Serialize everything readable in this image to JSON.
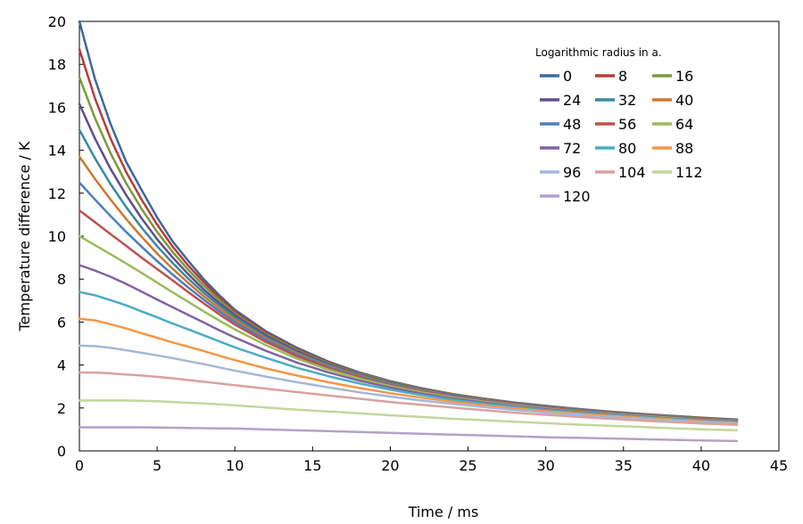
{
  "chart_data": {
    "type": "line",
    "title": "",
    "xlabel": "Time / ms",
    "ylabel": "Temperature difference / K",
    "xlim": [
      0,
      45
    ],
    "ylim": [
      0,
      20
    ],
    "xticks": [
      0,
      5,
      10,
      15,
      20,
      25,
      30,
      35,
      40,
      45
    ],
    "yticks": [
      0,
      2,
      4,
      6,
      8,
      10,
      12,
      14,
      16,
      18,
      20
    ],
    "grid": false,
    "legend_title": "Logarithmic radius in a.",
    "legend_position": "top-right",
    "x": [
      0,
      1,
      2,
      3,
      4,
      5,
      6,
      7,
      8,
      9,
      10,
      12,
      14,
      16,
      18,
      20,
      22,
      24,
      26,
      28,
      30,
      32,
      34,
      36,
      38,
      40,
      42.3
    ],
    "series": [
      {
        "name": "0",
        "color": "#3F679E",
        "values": [
          20.0,
          17.32,
          15.24,
          13.47,
          12.15,
          10.87,
          9.75,
          8.85,
          7.99,
          7.25,
          6.57,
          5.57,
          4.8,
          4.16,
          3.66,
          3.25,
          2.92,
          2.65,
          2.44,
          2.25,
          2.1,
          1.96,
          1.84,
          1.73,
          1.64,
          1.55,
          1.46
        ]
      },
      {
        "name": "8",
        "color": "#B43D3A",
        "values": [
          18.7,
          16.42,
          14.55,
          12.99,
          11.7,
          10.54,
          9.51,
          8.63,
          7.85,
          7.14,
          6.49,
          5.5,
          4.74,
          4.12,
          3.63,
          3.23,
          2.91,
          2.64,
          2.43,
          2.24,
          2.09,
          1.95,
          1.83,
          1.72,
          1.63,
          1.54,
          1.45
        ]
      },
      {
        "name": "16",
        "color": "#7B9A3B",
        "values": [
          17.4,
          15.5,
          13.87,
          12.47,
          11.27,
          10.2,
          9.26,
          8.43,
          7.69,
          7.03,
          6.4,
          5.44,
          4.69,
          4.08,
          3.6,
          3.21,
          2.89,
          2.63,
          2.42,
          2.23,
          2.08,
          1.94,
          1.82,
          1.71,
          1.62,
          1.53,
          1.44
        ]
      },
      {
        "name": "24",
        "color": "#634C8E",
        "values": [
          16.15,
          14.55,
          13.14,
          11.92,
          10.83,
          9.86,
          9.01,
          8.23,
          7.52,
          6.89,
          6.32,
          5.38,
          4.64,
          4.04,
          3.56,
          3.18,
          2.87,
          2.61,
          2.4,
          2.22,
          2.06,
          1.93,
          1.81,
          1.7,
          1.61,
          1.52,
          1.43
        ]
      },
      {
        "name": "32",
        "color": "#37899D",
        "values": [
          14.95,
          13.63,
          12.43,
          11.36,
          10.4,
          9.53,
          8.75,
          8.02,
          7.36,
          6.77,
          6.22,
          5.3,
          4.58,
          4.0,
          3.53,
          3.15,
          2.85,
          2.59,
          2.38,
          2.2,
          2.05,
          1.92,
          1.8,
          1.69,
          1.6,
          1.51,
          1.42
        ]
      },
      {
        "name": "40",
        "color": "#CD7730",
        "values": [
          13.7,
          12.67,
          11.71,
          10.8,
          9.97,
          9.19,
          8.48,
          7.82,
          7.2,
          6.63,
          6.11,
          5.23,
          4.53,
          3.95,
          3.5,
          3.12,
          2.82,
          2.57,
          2.36,
          2.19,
          2.03,
          1.9,
          1.78,
          1.68,
          1.58,
          1.5,
          1.41
        ]
      },
      {
        "name": "48",
        "color": "#4A7EBF",
        "values": [
          12.5,
          11.71,
          10.94,
          10.2,
          9.51,
          8.84,
          8.21,
          7.61,
          7.04,
          6.5,
          6.0,
          5.16,
          4.47,
          3.91,
          3.46,
          3.09,
          2.79,
          2.55,
          2.34,
          2.17,
          2.02,
          1.89,
          1.77,
          1.67,
          1.57,
          1.49,
          1.4
        ]
      },
      {
        "name": "56",
        "color": "#C0504D",
        "values": [
          11.2,
          10.65,
          10.1,
          9.55,
          9.0,
          8.47,
          7.94,
          7.4,
          6.87,
          6.36,
          5.88,
          5.07,
          4.41,
          3.86,
          3.42,
          3.06,
          2.76,
          2.52,
          2.32,
          2.15,
          2.0,
          1.87,
          1.75,
          1.65,
          1.56,
          1.47,
          1.38
        ]
      },
      {
        "name": "64",
        "color": "#9BBB59",
        "values": [
          10.0,
          9.58,
          9.16,
          8.73,
          8.29,
          7.84,
          7.38,
          6.94,
          6.5,
          6.07,
          5.66,
          4.92,
          4.3,
          3.79,
          3.37,
          3.02,
          2.73,
          2.49,
          2.29,
          2.12,
          1.97,
          1.84,
          1.73,
          1.63,
          1.54,
          1.45,
          1.37
        ]
      },
      {
        "name": "72",
        "color": "#8064A2",
        "values": [
          8.65,
          8.4,
          8.11,
          7.78,
          7.42,
          7.05,
          6.69,
          6.33,
          5.98,
          5.62,
          5.28,
          4.66,
          4.11,
          3.66,
          3.27,
          2.95,
          2.67,
          2.44,
          2.25,
          2.08,
          1.94,
          1.81,
          1.7,
          1.6,
          1.51,
          1.43,
          1.35
        ]
      },
      {
        "name": "80",
        "color": "#4BACC6",
        "values": [
          7.4,
          7.25,
          7.02,
          6.78,
          6.5,
          6.22,
          5.93,
          5.66,
          5.38,
          5.1,
          4.82,
          4.33,
          3.87,
          3.48,
          3.14,
          2.85,
          2.6,
          2.38,
          2.2,
          2.04,
          1.9,
          1.78,
          1.67,
          1.58,
          1.49,
          1.41,
          1.33
        ]
      },
      {
        "name": "88",
        "color": "#F79646",
        "values": [
          6.15,
          6.08,
          5.9,
          5.7,
          5.48,
          5.27,
          5.05,
          4.85,
          4.65,
          4.43,
          4.23,
          3.84,
          3.51,
          3.2,
          2.93,
          2.69,
          2.48,
          2.29,
          2.13,
          1.98,
          1.85,
          1.74,
          1.64,
          1.55,
          1.46,
          1.38,
          1.3
        ]
      },
      {
        "name": "96",
        "color": "#A5B7D8",
        "values": [
          4.9,
          4.88,
          4.8,
          4.69,
          4.57,
          4.45,
          4.32,
          4.18,
          4.04,
          3.89,
          3.74,
          3.46,
          3.2,
          2.96,
          2.73,
          2.53,
          2.35,
          2.19,
          2.04,
          1.91,
          1.79,
          1.68,
          1.58,
          1.5,
          1.42,
          1.34,
          1.26
        ]
      },
      {
        "name": "104",
        "color": "#D9A1A0",
        "values": [
          3.65,
          3.65,
          3.61,
          3.56,
          3.51,
          3.45,
          3.38,
          3.3,
          3.22,
          3.14,
          3.06,
          2.9,
          2.74,
          2.58,
          2.43,
          2.28,
          2.15,
          2.02,
          1.9,
          1.78,
          1.68,
          1.59,
          1.5,
          1.42,
          1.35,
          1.28,
          1.21
        ]
      },
      {
        "name": "112",
        "color": "#C3D69B",
        "values": [
          2.35,
          2.35,
          2.35,
          2.35,
          2.33,
          2.31,
          2.28,
          2.24,
          2.21,
          2.17,
          2.12,
          2.02,
          1.92,
          1.84,
          1.75,
          1.66,
          1.58,
          1.5,
          1.43,
          1.36,
          1.29,
          1.23,
          1.17,
          1.12,
          1.06,
          1.01,
          0.96
        ]
      },
      {
        "name": "120",
        "color": "#B3A2C7",
        "values": [
          1.1,
          1.1,
          1.1,
          1.1,
          1.1,
          1.09,
          1.08,
          1.07,
          1.06,
          1.05,
          1.04,
          1.0,
          0.96,
          0.92,
          0.88,
          0.84,
          0.8,
          0.76,
          0.72,
          0.68,
          0.64,
          0.61,
          0.58,
          0.55,
          0.52,
          0.49,
          0.46
        ]
      }
    ]
  }
}
